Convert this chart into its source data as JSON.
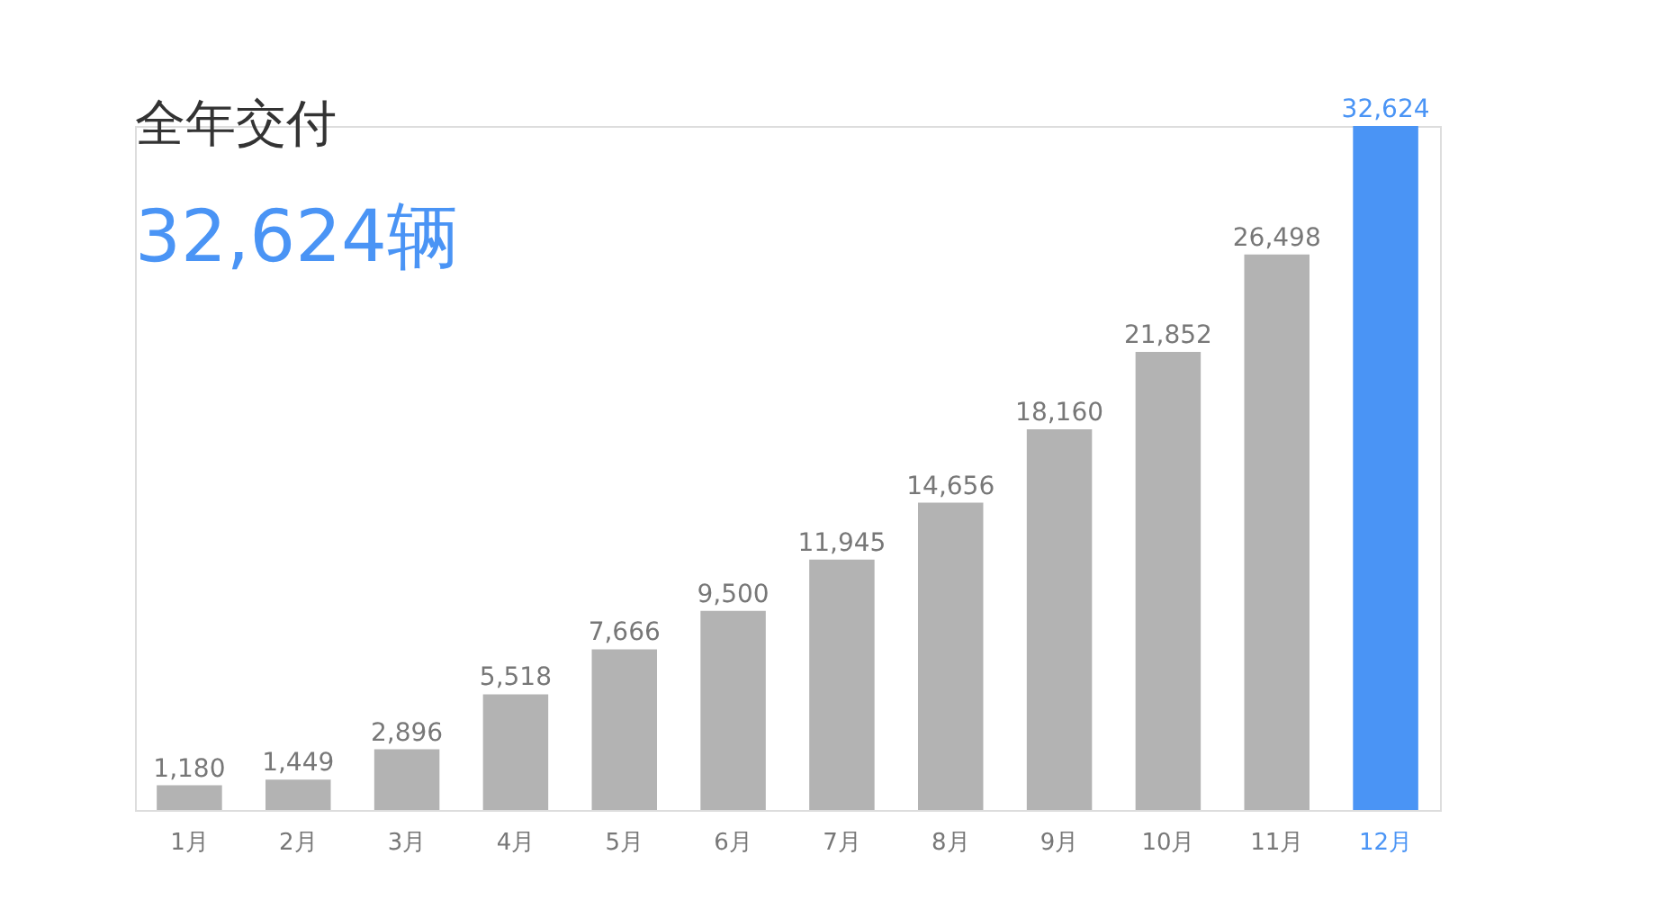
{
  "chart_data": {
    "type": "bar",
    "title": "全年交付",
    "subtitle": "32,624辆",
    "categories": [
      "1月",
      "2月",
      "3月",
      "4月",
      "5月",
      "6月",
      "7月",
      "8月",
      "9月",
      "10月",
      "11月",
      "12月"
    ],
    "values": [
      1180,
      1449,
      2896,
      5518,
      7666,
      9500,
      11945,
      14656,
      18160,
      21852,
      26498,
      32624
    ],
    "colors": [
      "#b3b3b3",
      "#b3b3b3",
      "#b3b3b3",
      "#b3b3b3",
      "#b3b3b3",
      "#b3b3b3",
      "#b3b3b3",
      "#b3b3b3",
      "#b3b3b3",
      "#b3b3b3",
      "#b3b3b3",
      "#4a94f5"
    ],
    "value_labels": [
      "1,180",
      "1,449",
      "2,896",
      "5,518",
      "7,666",
      "9,500",
      "11,945",
      "14,656",
      "18,160",
      "21,852",
      "26,498",
      "32,624"
    ]
  }
}
